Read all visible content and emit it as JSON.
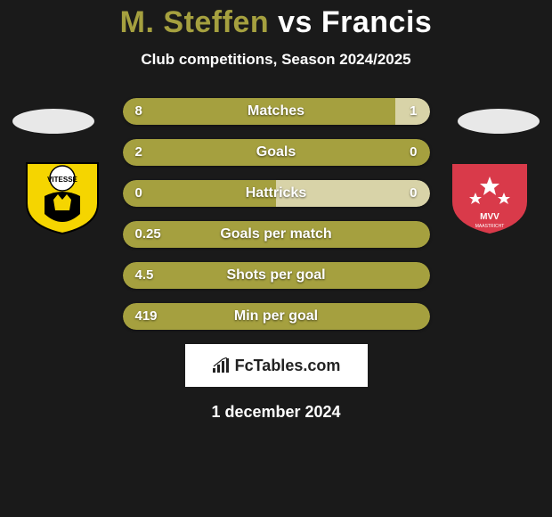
{
  "title": {
    "player1": "M. Steffen",
    "vs": "vs",
    "player2": "Francis"
  },
  "subtitle": "Club competitions, Season 2024/2025",
  "colors": {
    "player1": "#a5a03f",
    "player2": "#d8d3a8",
    "background": "#1a1a1a",
    "text": "#ffffff"
  },
  "badge_left": {
    "name": "VITESSE",
    "primary": "#f5d500",
    "secondary": "#000000",
    "circle": "#ffffff"
  },
  "badge_right": {
    "name": "MVV",
    "primary": "#d93a4a",
    "star": "#ffffff"
  },
  "stats": [
    {
      "label": "Matches",
      "left_val": "8",
      "right_val": "1",
      "left_num": 8,
      "right_num": 1
    },
    {
      "label": "Goals",
      "left_val": "2",
      "right_val": "0",
      "left_num": 2,
      "right_num": 0
    },
    {
      "label": "Hattricks",
      "left_val": "0",
      "right_val": "0",
      "left_num": 0,
      "right_num": 0
    },
    {
      "label": "Goals per match",
      "left_val": "0.25",
      "right_val": "",
      "left_num": 0.25,
      "right_num": 0
    },
    {
      "label": "Shots per goal",
      "left_val": "4.5",
      "right_val": "",
      "left_num": 4.5,
      "right_num": 0
    },
    {
      "label": "Min per goal",
      "left_val": "419",
      "right_val": "",
      "left_num": 419,
      "right_num": 0
    }
  ],
  "bar_style": {
    "height": 30,
    "radius": 15,
    "gap": 16,
    "label_fontsize": 16,
    "value_fontsize": 15
  },
  "branding": "FcTables.com",
  "date": "1 december 2024"
}
